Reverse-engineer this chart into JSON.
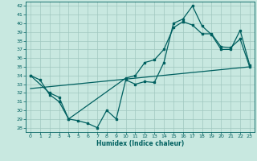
{
  "xlabel": "Humidex (Indice chaleur)",
  "bg_color": "#c8e8e0",
  "line_color": "#006060",
  "grid_color": "#a0c8c0",
  "xlim": [
    -0.5,
    23.5
  ],
  "ylim": [
    27.5,
    42.5
  ],
  "xticks": [
    0,
    1,
    2,
    3,
    4,
    5,
    6,
    7,
    8,
    9,
    10,
    11,
    12,
    13,
    14,
    15,
    16,
    17,
    18,
    19,
    20,
    21,
    22,
    23
  ],
  "yticks": [
    28,
    29,
    30,
    31,
    32,
    33,
    34,
    35,
    36,
    37,
    38,
    39,
    40,
    41,
    42
  ],
  "line1_x": [
    0,
    1,
    2,
    3,
    4,
    5,
    6,
    7,
    8,
    9,
    10,
    11,
    12,
    13,
    14,
    15,
    16,
    17,
    18,
    19,
    20,
    21,
    22,
    23
  ],
  "line1_y": [
    34.0,
    33.5,
    31.8,
    31.0,
    29.0,
    28.8,
    28.5,
    28.0,
    30.0,
    29.0,
    33.5,
    33.0,
    33.3,
    33.2,
    35.5,
    40.0,
    40.5,
    42.0,
    39.7,
    38.7,
    37.0,
    37.0,
    39.2,
    35.2
  ],
  "line2_x": [
    0,
    2,
    3,
    4,
    10,
    11,
    12,
    13,
    14,
    15,
    16,
    17,
    18,
    19,
    20,
    21,
    22,
    23
  ],
  "line2_y": [
    34.0,
    32.0,
    31.5,
    29.0,
    33.7,
    34.0,
    35.5,
    35.8,
    37.0,
    39.5,
    40.2,
    39.8,
    38.8,
    38.8,
    37.3,
    37.2,
    38.2,
    35.0
  ],
  "line3_x": [
    0,
    23
  ],
  "line3_y": [
    32.5,
    35.0
  ]
}
